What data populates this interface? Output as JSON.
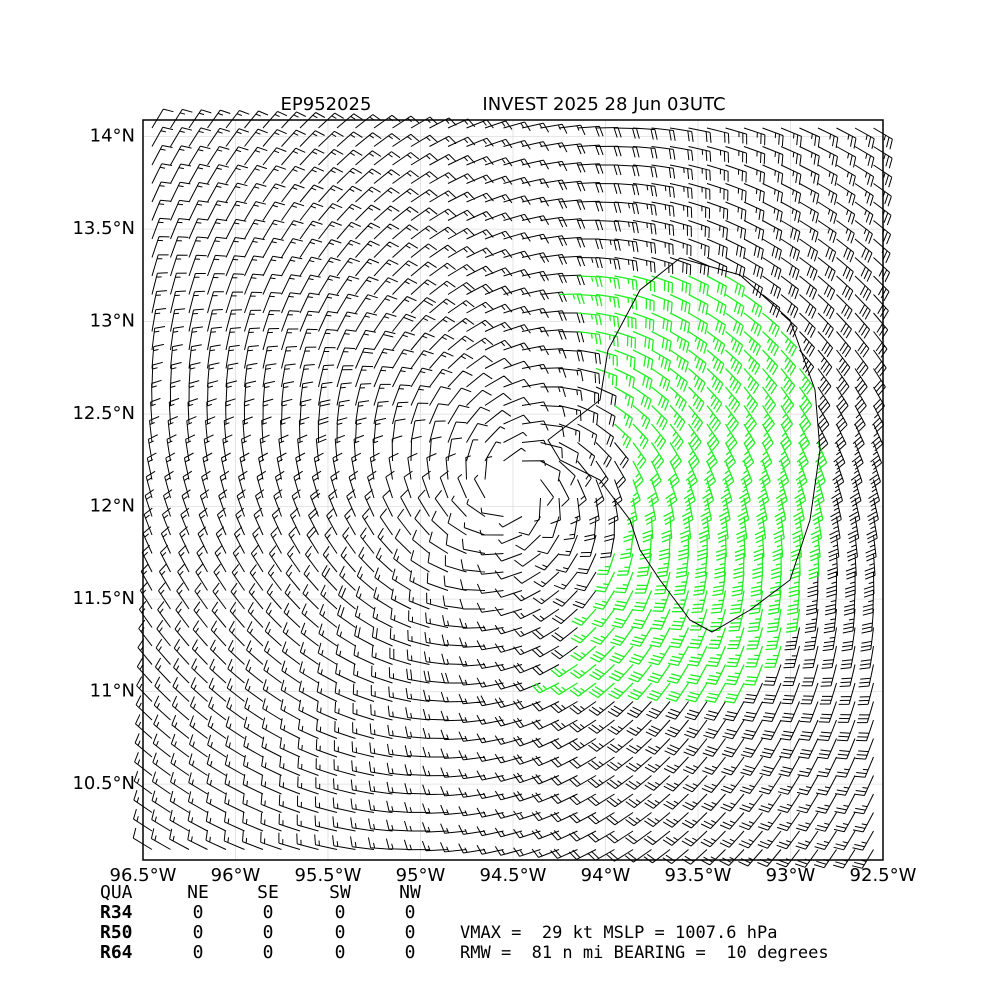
{
  "title": {
    "left": "EP952025",
    "right": "INVEST 2025 28 Jun 03UTC"
  },
  "map": {
    "xlim": [
      -96.5,
      -92.5
    ],
    "ylim": [
      10.09,
      14.09
    ],
    "xticks": [
      {
        "value": -96.5,
        "label": "96.5°W"
      },
      {
        "value": -96,
        "label": "96°W"
      },
      {
        "value": -95.5,
        "label": "95.5°W"
      },
      {
        "value": -95,
        "label": "95°W"
      },
      {
        "value": -94.5,
        "label": "94.5°W"
      },
      {
        "value": -94,
        "label": "94°W"
      },
      {
        "value": -93.5,
        "label": "93.5°W"
      },
      {
        "value": -93,
        "label": "93°W"
      },
      {
        "value": -92.5,
        "label": "92.5°W"
      }
    ],
    "yticks": [
      {
        "value": 10.5,
        "label": "10.5°N"
      },
      {
        "value": 11,
        "label": "11°N"
      },
      {
        "value": 11.5,
        "label": "11.5°N"
      },
      {
        "value": 12,
        "label": "12°N"
      },
      {
        "value": 12.5,
        "label": "12.5°N"
      },
      {
        "value": 13,
        "label": "13°N"
      },
      {
        "value": 13.5,
        "label": "13.5°N"
      },
      {
        "value": 14,
        "label": "14°N"
      }
    ]
  },
  "radii_table": {
    "header": [
      "QUA",
      "NE",
      "SE",
      "SW",
      "NW"
    ],
    "rows": [
      [
        "R34",
        0,
        0,
        0,
        0
      ],
      [
        "R50",
        0,
        0,
        0,
        0
      ],
      [
        "R64",
        0,
        0,
        0,
        0
      ]
    ]
  },
  "stats": {
    "vmax_label": "VMAX =",
    "vmax": 29,
    "vmax_unit": "kt",
    "mslp_label": "MSLP =",
    "mslp": 1007.6,
    "mslp_unit": "hPa",
    "rmw_label": "RMW =",
    "rmw": 81,
    "rmw_unit": "n mi",
    "bearing_label": "BEARING =",
    "bearing": 10,
    "bearing_unit": "degrees"
  }
}
